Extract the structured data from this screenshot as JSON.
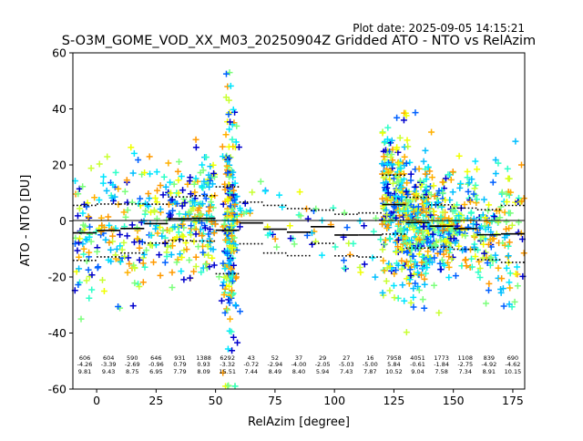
{
  "plot_date": "Plot date: 2025-09-05 14:15:21",
  "chart_data": {
    "type": "scatter",
    "title": "S-O3M_GOME_VOD_XX_M03_20250904Z Gridded ATO - NTO vs RelAzim",
    "xlabel": "RelAzim [degree]",
    "ylabel": "ATO - NTO [DU]",
    "xlim": [
      -10,
      180
    ],
    "ylim": [
      -60,
      60
    ],
    "xticks": [
      0,
      25,
      50,
      75,
      100,
      125,
      150,
      175
    ],
    "yticks": [
      -60,
      -40,
      -20,
      0,
      20,
      40,
      60
    ],
    "marker": "+",
    "point_colors": [
      "#00bfff",
      "#00e5ff",
      "#2fffc8",
      "#7cff7c",
      "#c8ff32",
      "#f0ff00",
      "#ffb000",
      "#ff9a00",
      "#0000cd",
      "#0060ff"
    ],
    "bins": [
      {
        "center": -5,
        "n": "606",
        "mean": "-4.26",
        "std": "9.81"
      },
      {
        "center": 5,
        "n": "604",
        "mean": "-3.39",
        "std": "9.43"
      },
      {
        "center": 15,
        "n": "590",
        "mean": "-2.69",
        "std": "8.75"
      },
      {
        "center": 25,
        "n": "646",
        "mean": "-0.96",
        "std": "6.95"
      },
      {
        "center": 35,
        "n": "931",
        "mean": "0.79",
        "std": "7.79"
      },
      {
        "center": 45,
        "n": "1388",
        "mean": "0.93",
        "std": "8.09"
      },
      {
        "center": 55,
        "n": "6292",
        "mean": "-3.32",
        "std": "15.51"
      },
      {
        "center": 65,
        "n": "43",
        "mean": "-0.72",
        "std": "7.44"
      },
      {
        "center": 75,
        "n": "52",
        "mean": "-2.94",
        "std": "8.49"
      },
      {
        "center": 85,
        "n": "37",
        "mean": "-4.00",
        "std": "8.40"
      },
      {
        "center": 95,
        "n": "29",
        "mean": "-2.05",
        "std": "5.94"
      },
      {
        "center": 105,
        "n": "27",
        "mean": "-5.03",
        "std": "7.43"
      },
      {
        "center": 115,
        "n": "16",
        "mean": "-5.00",
        "std": "7.87"
      },
      {
        "center": 125,
        "n": "7958",
        "mean": "5.84",
        "std": "10.52"
      },
      {
        "center": 135,
        "n": "4051",
        "mean": "-0.61",
        "std": "9.04"
      },
      {
        "center": 145,
        "n": "1773",
        "mean": "-1.84",
        "std": "7.58"
      },
      {
        "center": 155,
        "n": "1108",
        "mean": "-2.75",
        "std": "7.34"
      },
      {
        "center": 165,
        "n": "839",
        "mean": "-4.92",
        "std": "8.91"
      },
      {
        "center": 175,
        "n": "690",
        "mean": "-4.62",
        "std": "10.15"
      }
    ]
  }
}
